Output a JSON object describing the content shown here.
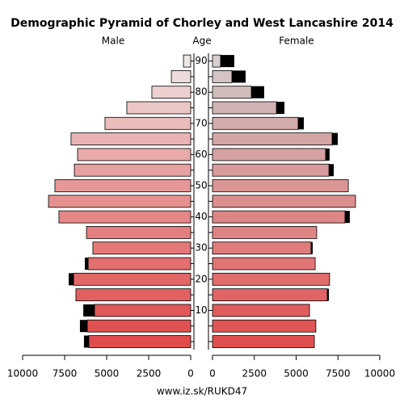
{
  "chart_data": {
    "type": "pyramid",
    "title": "Demographic Pyramid of Chorley and West Lancashire 2014",
    "center_label": "Age",
    "footer": "www.iz.sk/RUKD47",
    "categories": [
      null,
      null,
      "10",
      null,
      "20",
      null,
      "30",
      null,
      "40",
      null,
      "50",
      null,
      "60",
      null,
      "70",
      null,
      "80",
      null,
      "90"
    ],
    "series": [
      {
        "name": "Male",
        "side": "left",
        "values": [
          6060,
          6150,
          5720,
          6830,
          6970,
          6100,
          5820,
          6200,
          7840,
          8460,
          8080,
          6920,
          6730,
          7120,
          5100,
          3800,
          2310,
          1150,
          430
        ],
        "extra_values": [
          290,
          440,
          670,
          0,
          290,
          200,
          0,
          0,
          0,
          0,
          0,
          0,
          0,
          0,
          0,
          0,
          0,
          0,
          0
        ],
        "extra_color": "#000000",
        "colors": [
          "#e04c4c",
          "#e05252",
          "#e05858",
          "#e16060",
          "#e26767",
          "#e36f6f",
          "#e47777",
          "#e47f7f",
          "#e58787",
          "#e69090",
          "#e69898",
          "#e7a1a1",
          "#e8aaaa",
          "#e9b3b3",
          "#eabcbc",
          "#ebc6c6",
          "#ecd0d0",
          "#eddbdb",
          "#eee6e6"
        ]
      },
      {
        "name": "Female",
        "side": "right",
        "values": [
          6090,
          6180,
          5800,
          6860,
          7000,
          6140,
          5890,
          6230,
          7920,
          8550,
          8120,
          6960,
          6760,
          7150,
          5120,
          3820,
          2320,
          1160,
          480
        ],
        "extra_values": [
          0,
          0,
          0,
          100,
          0,
          0,
          100,
          0,
          290,
          0,
          0,
          290,
          240,
          340,
          340,
          480,
          770,
          820,
          820
        ],
        "extra_color": "#000000",
        "colors": [
          "#e04f4f",
          "#e05555",
          "#e05c5c",
          "#e06464",
          "#e06c6c",
          "#e07474",
          "#df7c7c",
          "#df8484",
          "#dc8686",
          "#dc8e8e",
          "#db9595",
          "#d99c9c",
          "#d6a1a1",
          "#d4a6a6",
          "#d3acac",
          "#d2b3b3",
          "#d2bbbb",
          "#d4c4c4",
          "#d8cece"
        ]
      }
    ],
    "xlim": [
      0,
      10000
    ],
    "xticks": [
      10000,
      7500,
      5000,
      2500,
      0
    ]
  }
}
